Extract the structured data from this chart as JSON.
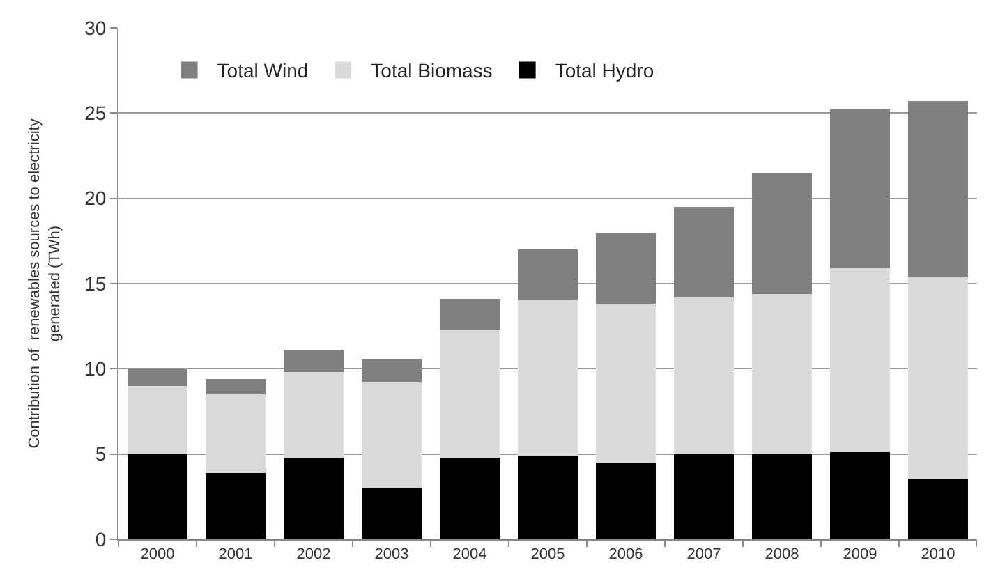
{
  "chart_data": {
    "type": "bar",
    "stacked": true,
    "ylabel": "Contribution of  renewables sources to electricity\ngenerated (TWh)",
    "categories": [
      "2000",
      "2001",
      "2002",
      "2003",
      "2004",
      "2005",
      "2006",
      "2007",
      "2008",
      "2009",
      "2010"
    ],
    "series": [
      {
        "name": "Total Hydro",
        "color": "#000000",
        "values": [
          5.0,
          3.9,
          4.8,
          3.0,
          4.8,
          4.9,
          4.5,
          5.0,
          5.0,
          5.1,
          3.5
        ]
      },
      {
        "name": "Total Biomass",
        "color": "#d9d9d9",
        "values": [
          4.0,
          4.6,
          5.0,
          6.2,
          7.5,
          9.1,
          9.3,
          9.2,
          9.4,
          10.8,
          11.9
        ]
      },
      {
        "name": "Total Wind",
        "color": "#808080",
        "values": [
          1.0,
          0.9,
          1.3,
          1.4,
          1.8,
          3.0,
          4.2,
          5.3,
          7.1,
          9.3,
          10.3
        ]
      }
    ],
    "ylim": [
      0,
      30
    ],
    "yticks": [
      0,
      5,
      10,
      15,
      20,
      25,
      30
    ],
    "grid": "y",
    "legend": "top left"
  }
}
